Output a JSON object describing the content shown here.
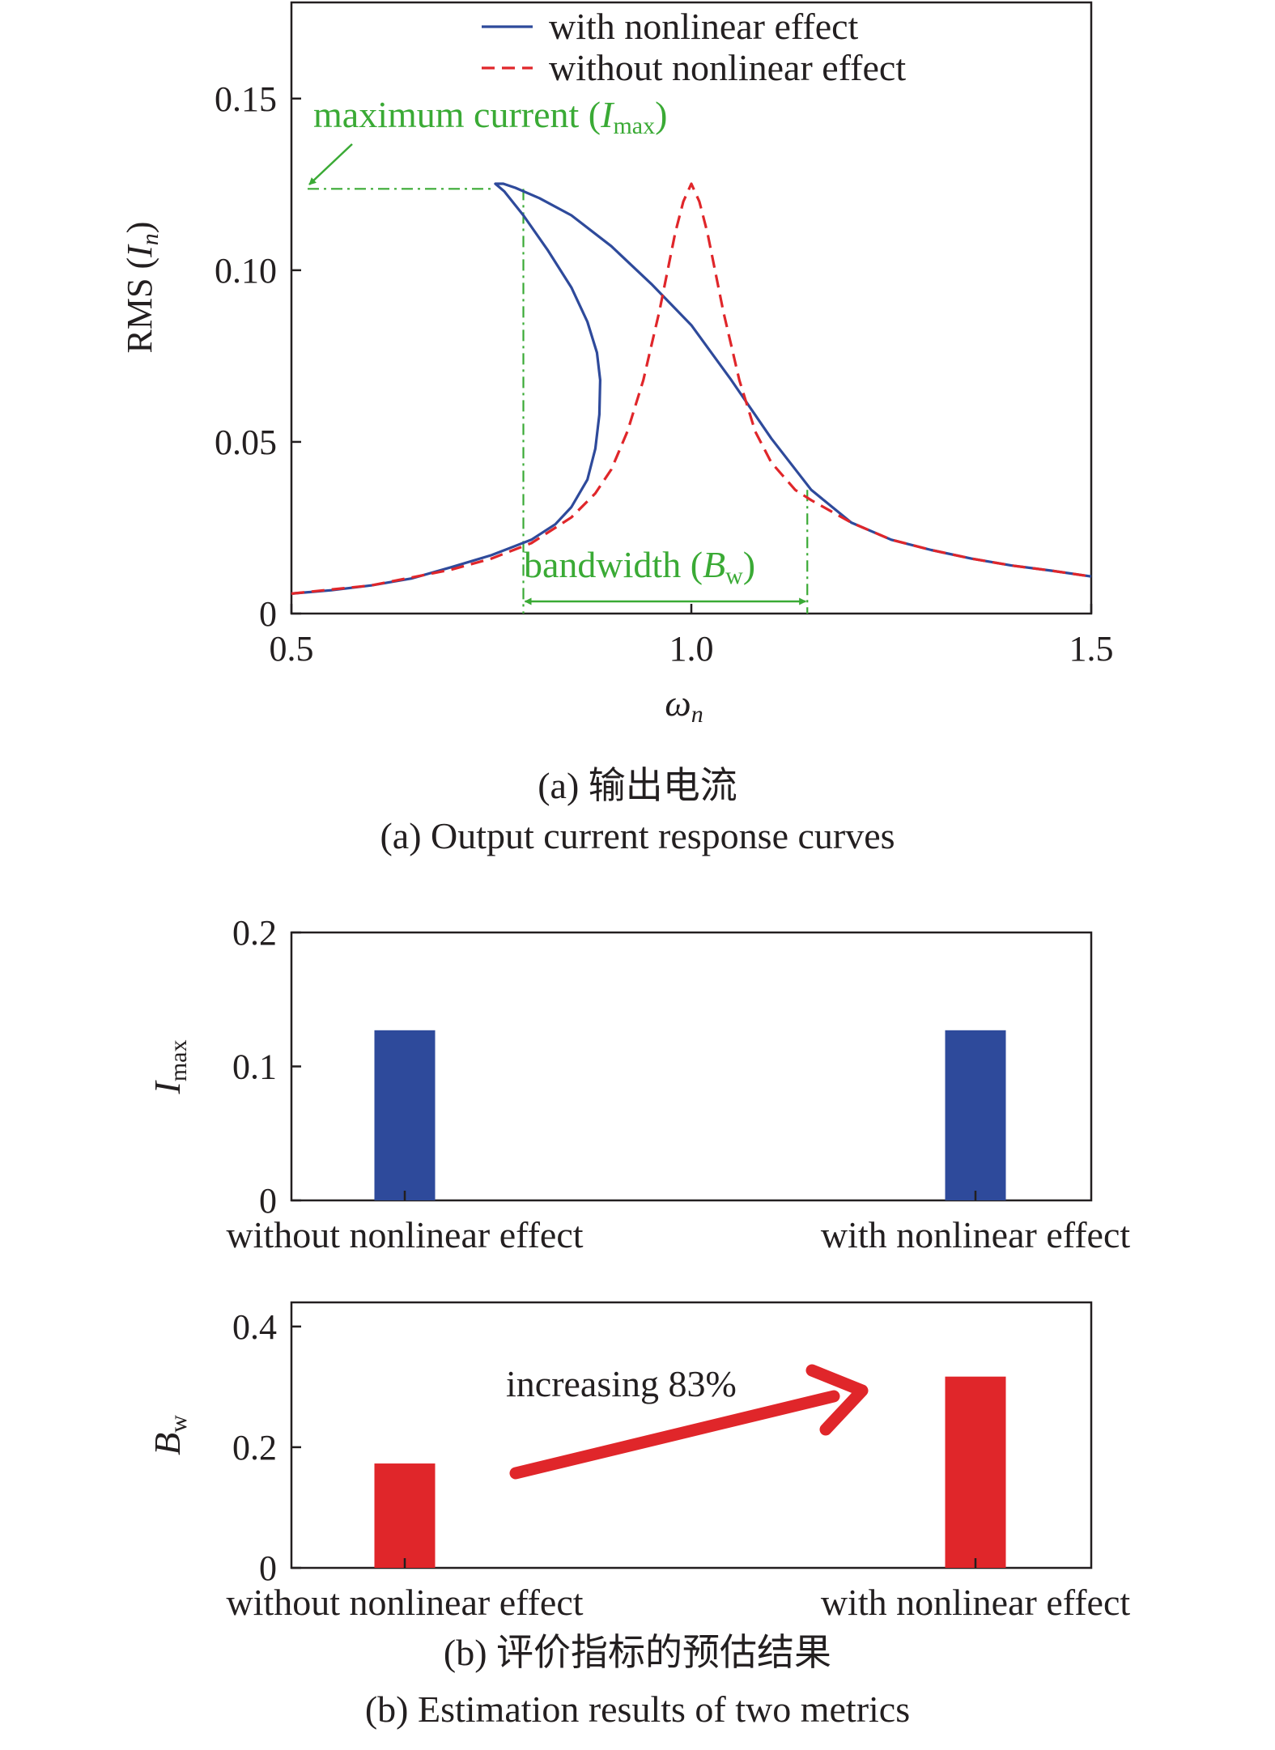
{
  "colors": {
    "with_series": "#2e4a9b",
    "without_series": "#e0262a",
    "annotation": "#3aaa35",
    "axis": "#231f20",
    "bar_imax": "#2e4a9b",
    "bar_bw": "#e0262a"
  },
  "captions": {
    "a_cn": "(a) 输出电流",
    "a_en": "(a) Output current response curves",
    "b_cn": "(b) 评价指标的预估结果",
    "b_en": "(b) Estimation results of two metrics"
  },
  "chart_data": [
    {
      "type": "line",
      "title": "",
      "xlabel": "ωn",
      "ylabel": "RMS (In)",
      "xlim": [
        0.5,
        1.5
      ],
      "ylim": [
        0,
        0.178
      ],
      "xticks": [
        "0.5",
        "1.0",
        "1.5"
      ],
      "yticks": [
        "0",
        "0.05",
        "0.10",
        "0.15"
      ],
      "legend": {
        "position": "top-right",
        "entries": [
          "with nonlinear effect",
          "without nonlinear effect"
        ]
      },
      "series": [
        {
          "name": "with nonlinear effect",
          "style": "solid",
          "points": [
            [
              0.5,
              0.0058
            ],
            [
              0.55,
              0.0068
            ],
            [
              0.6,
              0.0082
            ],
            [
              0.65,
              0.0102
            ],
            [
              0.7,
              0.0135
            ],
            [
              0.75,
              0.017
            ],
            [
              0.8,
              0.0215
            ],
            [
              0.83,
              0.026
            ],
            [
              0.85,
              0.031
            ],
            [
              0.87,
              0.039
            ],
            [
              0.88,
              0.048
            ],
            [
              0.885,
              0.058
            ],
            [
              0.886,
              0.068
            ],
            [
              0.882,
              0.076
            ],
            [
              0.87,
              0.085
            ],
            [
              0.85,
              0.095
            ],
            [
              0.82,
              0.106
            ],
            [
              0.79,
              0.116
            ],
            [
              0.766,
              0.123
            ],
            [
              0.755,
              0.1252
            ],
            [
              0.765,
              0.1252
            ],
            [
              0.78,
              0.124
            ],
            [
              0.81,
              0.121
            ],
            [
              0.85,
              0.116
            ],
            [
              0.9,
              0.107
            ],
            [
              0.95,
              0.096
            ],
            [
              1.0,
              0.084
            ],
            [
              1.05,
              0.068
            ],
            [
              1.1,
              0.051
            ],
            [
              1.15,
              0.036
            ],
            [
              1.2,
              0.0265
            ],
            [
              1.25,
              0.0215
            ],
            [
              1.3,
              0.0185
            ],
            [
              1.35,
              0.016
            ],
            [
              1.4,
              0.014
            ],
            [
              1.45,
              0.0125
            ],
            [
              1.5,
              0.0108
            ]
          ]
        },
        {
          "name": "without nonlinear effect",
          "style": "dashed",
          "points": [
            [
              0.5,
              0.0058
            ],
            [
              0.6,
              0.0082
            ],
            [
              0.7,
              0.0128
            ],
            [
              0.75,
              0.016
            ],
            [
              0.8,
              0.0205
            ],
            [
              0.85,
              0.028
            ],
            [
              0.88,
              0.035
            ],
            [
              0.9,
              0.042
            ],
            [
              0.92,
              0.053
            ],
            [
              0.94,
              0.068
            ],
            [
              0.96,
              0.088
            ],
            [
              0.98,
              0.111
            ],
            [
              0.99,
              0.12
            ],
            [
              1.0,
              0.1252
            ],
            [
              1.01,
              0.12
            ],
            [
              1.02,
              0.111
            ],
            [
              1.04,
              0.088
            ],
            [
              1.06,
              0.068
            ],
            [
              1.08,
              0.053
            ],
            [
              1.1,
              0.044
            ],
            [
              1.13,
              0.036
            ],
            [
              1.15,
              0.033
            ],
            [
              1.2,
              0.0265
            ],
            [
              1.25,
              0.0215
            ],
            [
              1.3,
              0.0185
            ],
            [
              1.35,
              0.016
            ],
            [
              1.4,
              0.014
            ],
            [
              1.45,
              0.0125
            ],
            [
              1.5,
              0.0108
            ]
          ]
        }
      ],
      "annotations": {
        "imax": {
          "label": "maximum current (",
          "sym": "I",
          "sub": "max",
          "close": ")",
          "value": 0.1237,
          "x_from": 0.5,
          "x_to": 0.755
        },
        "bw": {
          "label": "bandwidth (",
          "sym": "B",
          "sub": "w",
          "close": ")",
          "x_start": 0.79,
          "x_end": 1.145,
          "y_level": 0.003
        }
      }
    },
    {
      "type": "bar",
      "ylabel_sym": "I",
      "ylabel_sub": "max",
      "categories": [
        "without nonlinear effect",
        "with nonlinear effect"
      ],
      "values": [
        0.127,
        0.127
      ],
      "ylim": [
        0,
        0.2
      ],
      "yticks": [
        "0",
        "0.1",
        "0.2"
      ]
    },
    {
      "type": "bar",
      "ylabel_sym": "B",
      "ylabel_sub": "w",
      "categories": [
        "without nonlinear effect",
        "with nonlinear effect"
      ],
      "values": [
        0.173,
        0.317
      ],
      "ylim": [
        0,
        0.44
      ],
      "yticks": [
        "0",
        "0.2",
        "0.4"
      ],
      "annotation": "increasing 83%"
    }
  ]
}
